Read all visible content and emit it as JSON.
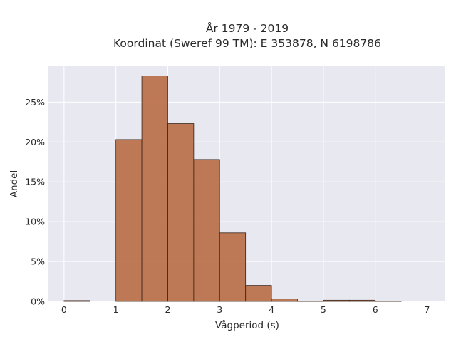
{
  "chart_data": {
    "type": "bar",
    "title_lines": [
      "År 1979 - 2019",
      "Koordinat (Sweref 99 TM): E 353878, N 6198786"
    ],
    "xlabel": "Vågperiod (s)",
    "ylabel": "Andel",
    "bin_width": 0.5,
    "bins": [
      {
        "x0": 0.0,
        "x1": 0.5,
        "value": 0.1
      },
      {
        "x0": 1.0,
        "x1": 1.5,
        "value": 20.3
      },
      {
        "x0": 1.5,
        "x1": 2.0,
        "value": 28.3
      },
      {
        "x0": 2.0,
        "x1": 2.5,
        "value": 22.3
      },
      {
        "x0": 2.5,
        "x1": 3.0,
        "value": 17.8
      },
      {
        "x0": 3.0,
        "x1": 3.5,
        "value": 8.6
      },
      {
        "x0": 3.5,
        "x1": 4.0,
        "value": 2.0
      },
      {
        "x0": 4.0,
        "x1": 4.5,
        "value": 0.3
      },
      {
        "x0": 4.5,
        "x1": 5.0,
        "value": 0.05
      },
      {
        "x0": 5.0,
        "x1": 5.5,
        "value": 0.15
      },
      {
        "x0": 5.5,
        "x1": 6.0,
        "value": 0.15
      },
      {
        "x0": 6.0,
        "x1": 6.5,
        "value": 0.05
      }
    ],
    "xlim": [
      -0.3,
      7.35
    ],
    "ylim": [
      0,
      29.5
    ],
    "x_ticks": [
      0,
      1,
      2,
      3,
      4,
      5,
      6,
      7
    ],
    "x_tick_labels": [
      "0",
      "1",
      "2",
      "3",
      "4",
      "5",
      "6",
      "7"
    ],
    "y_ticks": [
      0,
      5,
      10,
      15,
      20,
      25
    ],
    "y_tick_labels": [
      "0%",
      "5%",
      "10%",
      "15%",
      "20%",
      "25%"
    ],
    "grid": true,
    "legend": "none",
    "colors": {
      "bar": "#b5643a",
      "bar_edge": "#3a2418",
      "plot_bg": "#e8e8f1",
      "grid": "#ffffff"
    }
  }
}
